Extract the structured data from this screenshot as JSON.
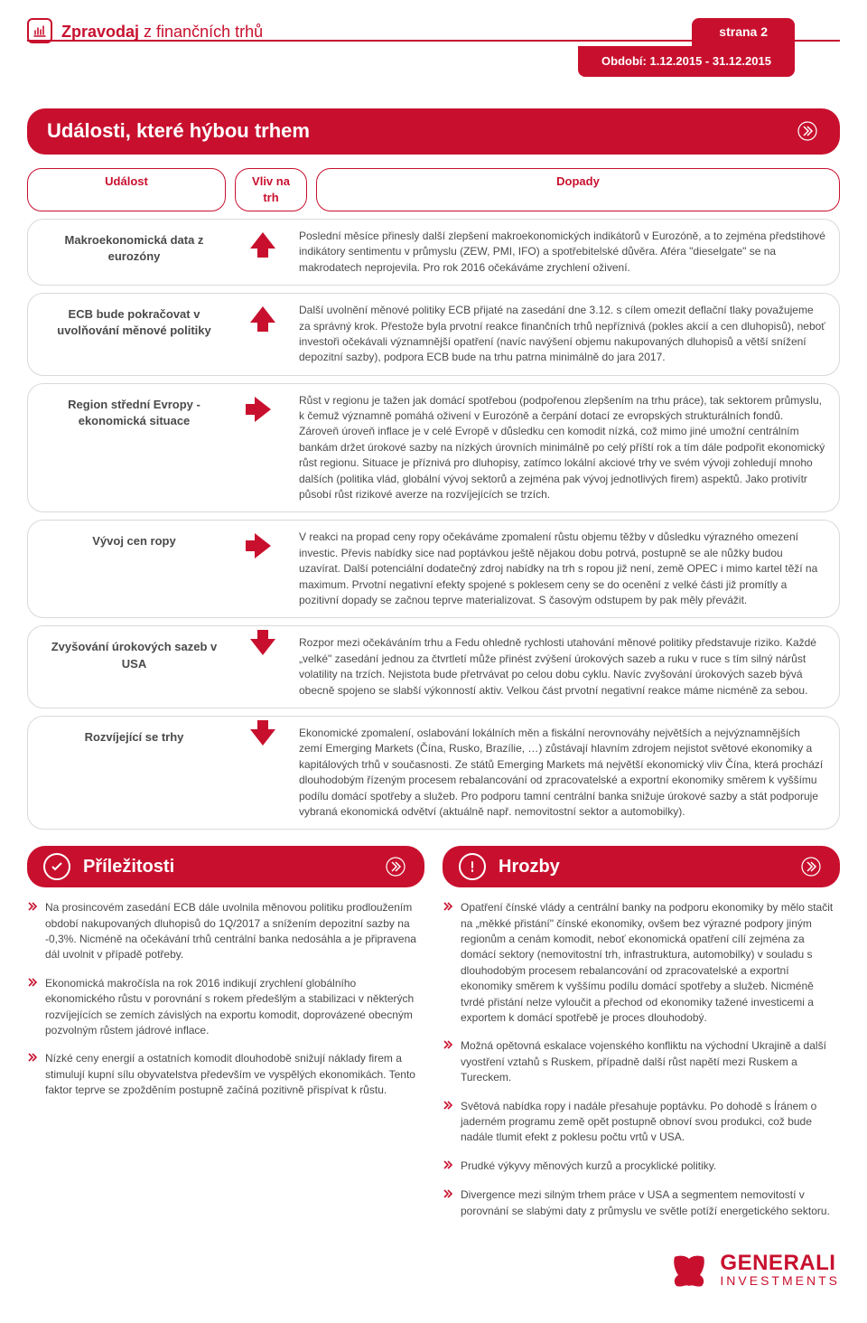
{
  "colors": {
    "brand": "#c8102e",
    "text": "#4a4a4a",
    "border": "#d9d9d9",
    "background": "#ffffff"
  },
  "header": {
    "title_bold": "Zpravodaj",
    "title_rest": " z finančních trhů",
    "page_label": "strana 2",
    "period_label": "Období: 1.12.2015 - 31.12.2015"
  },
  "main_title": "Události, které hýbou trhem",
  "columns": {
    "event": "Událost",
    "impact": "Vliv na trh",
    "effect": "Dopady"
  },
  "rows": [
    {
      "event": "Makroekonomická data z eurozóny",
      "arrow": "up",
      "effect": "Poslední měsíce přinesly další zlepšení makroekonomických indikátorů v Eurozóně, a to zejména předstihové indikátory sentimentu v průmyslu (ZEW, PMI, IFO) a spotřebitelské důvěra. Aféra \"dieselgate\" se na makrodatech neprojevila. Pro rok 2016 očekáváme zrychlení oživení."
    },
    {
      "event": "ECB bude pokračovat v uvolňování měnové politiky",
      "arrow": "up",
      "effect": "Další uvolnění měnové politiky ECB přijaté na zasedání dne 3.12. s cílem omezit deflační tlaky považujeme za správný krok. Přestože byla prvotní reakce finančních trhů nepříznivá (pokles akcií a cen dluhopisů), neboť investoři očekávali významnější opatření (navíc navýšení objemu nakupovaných dluhopisů a větší snížení depozitní sazby), podpora ECB bude na trhu patrna minimálně do jara 2017."
    },
    {
      "event": "Region střední Evropy - ekonomická situace",
      "arrow": "right",
      "effect": "Růst v regionu je tažen jak domácí spotřebou (podpořenou zlepšením na trhu práce), tak sektorem průmyslu, k čemuž významně pomáhá oživení v Eurozóně a čerpání dotací ze evropských strukturálních fondů. Zároveň úroveň inflace je v celé Evropě v důsledku cen komodit nízká, což mimo jiné umožní centrálním bankám držet úrokové sazby na nízkých úrovních minimálně po celý příští rok a tím dále podpořit ekonomický růst regionu. Situace je příznivá pro dluhopisy, zatímco lokální akciové trhy ve svém vývoji zohledují mnoho dalších (politika vlád, globální vývoj sektorů a zejména pak vývoj jednotlivých firem) aspektů. Jako protivítr působí růst rizikové averze na rozvíjejících se trzích."
    },
    {
      "event": "Vývoj cen ropy",
      "arrow": "right",
      "effect": "V reakci na propad ceny ropy očekáváme zpomalení růstu objemu těžby v důsledku výrazného omezení investic. Převis nabídky sice nad poptávkou ještě nějakou dobu potrvá, postupně se ale nůžky budou uzavírat. Další potenciální dodatečný zdroj nabídky na trh s ropou již není, země OPEC i mimo kartel těží na maximum. Prvotní negativní efekty spojené s poklesem ceny se do ocenění z velké části již promítly a pozitivní dopady se začnou teprve materializovat. S časovým odstupem by pak měly převážit."
    },
    {
      "event": "Zvyšování úrokových sazeb v USA",
      "arrow": "down",
      "effect": "Rozpor mezi očekáváním trhu a Fedu ohledně rychlosti utahování měnové politiky představuje riziko. Každé „velké\" zasedání jednou za čtvrtletí může přinést zvýšení úrokových sazeb a ruku v ruce s tím silný nárůst volatility na trzích. Nejistota bude přetrvávat po celou dobu cyklu. Navíc zvyšování úrokových sazeb bývá obecně spojeno se slabší výkonností aktiv. Velkou část prvotní negativní reakce máme nicméně za sebou."
    },
    {
      "event": "Rozvíjející se trhy",
      "arrow": "down",
      "effect": "Ekonomické zpomalení, oslabování lokálních měn a fiskální nerovnováhy největších a nejvýznamnějších zemí Emerging Markets (Čína, Rusko, Brazílie, …) zůstávají hlavním zdrojem nejistot světové ekonomiky a kapitálových trhů v současnosti. Ze států Emerging Markets má největší ekonomický vliv Čína, která prochází dlouhodobým řízeným procesem rebalancování od zpracovatelské a exportní ekonomiky směrem k vyššímu podílu domácí spotřeby a služeb. Pro podporu tamní centrální banka snižuje úrokové sazby a stát podporuje vybraná ekonomická odvětví (aktuálně např. nemovitostní sektor a automobilky)."
    }
  ],
  "opportunities": {
    "title": "Příležitosti",
    "items": [
      "Na prosincovém zasedání ECB dále uvolnila měnovou politiku prodloužením období nakupovaných dluhopisů do 1Q/2017 a snížením depozitní sazby na -0,3%. Nicméně na očekávání trhů centrální banka nedosáhla a je připravena dál uvolnit v případě potřeby.",
      "Ekonomická makročísla na rok 2016 indikují zrychlení globálního ekonomického růstu v porovnání s rokem předešlým a stabilizaci v některých rozvíjejících se zemích závislých na exportu komodit, doprovázené obecným pozvolným růstem jádrové inflace.",
      "Nízké ceny energií a ostatních komodit dlouhodobě snižují náklady firem a stimulují kupní sílu obyvatelstva především ve vyspělých ekonomikách. Tento faktor teprve se zpožděním postupně začíná pozitivně přispívat k růstu."
    ]
  },
  "threats": {
    "title": "Hrozby",
    "items": [
      "Opatření čínské vlády a centrální banky na podporu ekonomiky by mělo stačit na „měkké přistání\" čínské ekonomiky, ovšem bez výrazné podpory jiným regionům a cenám komodit, neboť ekonomická opatření cílí zejména za domácí sektory (nemovitostní trh, infrastruktura, automobilky) v souladu s dlouhodobým procesem rebalancování od zpracovatelské a exportní ekonomiky směrem k vyššímu podílu domácí spotřeby a služeb. Nicméně tvrdé přistání nelze vyloučit a přechod od ekonomiky tažené investicemi a exportem k domácí spotřebě je proces dlouhodobý.",
      "Možná opětovná eskalace vojenského konfliktu na východní Ukrajině a další vyostření vztahů s Ruskem, případně další růst napětí mezi Ruskem a Tureckem.",
      "Světová nabídka ropy i nadále přesahuje poptávku. Po dohodě s Íránem o jaderném programu země opět postupně obnoví svou produkci, což bude nadále tlumit efekt z poklesu počtu vrtů v USA.",
      "Prudké výkyvy měnových kurzů a procyklické politiky.",
      "Divergence mezi silným trhem práce v USA  a segmentem nemovitostí v porovnání se slabými daty z průmyslu ve světle potíží energetického sektoru."
    ]
  },
  "logo": {
    "name": "GENERALI",
    "sub": "INVESTMENTS"
  }
}
